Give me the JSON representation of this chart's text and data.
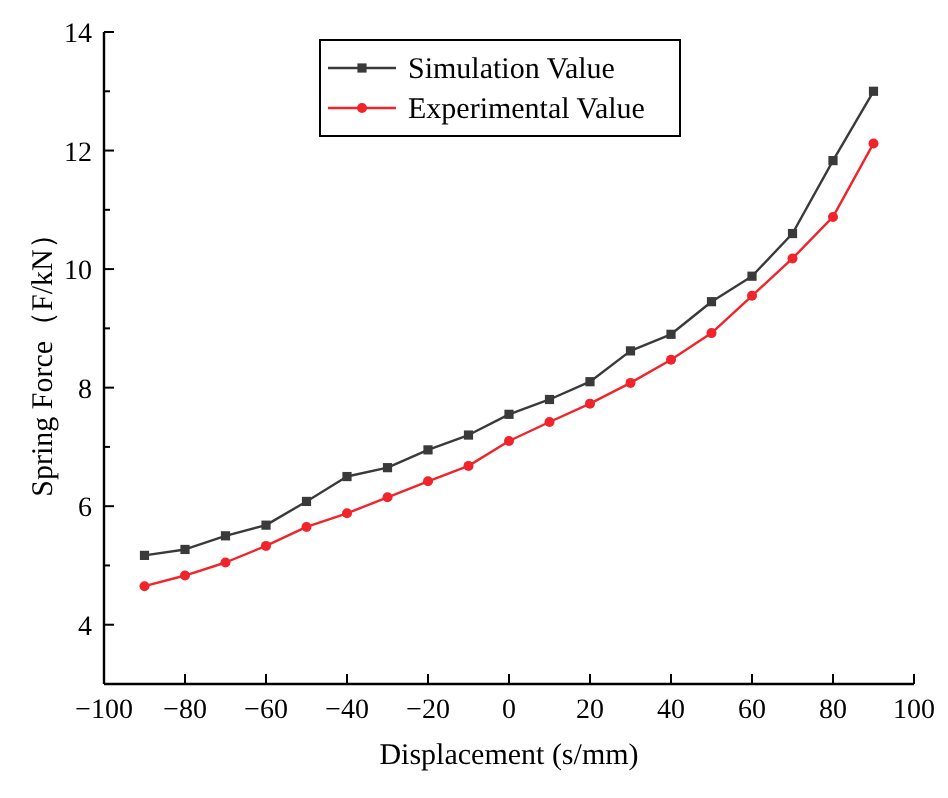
{
  "chart_data": {
    "type": "line",
    "xlabel": "Displacement (s/mm)",
    "ylabel": "Spring Force（F/kN）",
    "x": [
      -90,
      -80,
      -70,
      -60,
      -50,
      -40,
      -30,
      -20,
      -10,
      0,
      10,
      20,
      30,
      40,
      50,
      60,
      70,
      80,
      90
    ],
    "series": [
      {
        "name": "Simulation Value",
        "color": "#3a3a3a",
        "marker": "square",
        "values": [
          5.17,
          5.27,
          5.5,
          5.68,
          6.08,
          6.5,
          6.65,
          6.95,
          7.2,
          7.55,
          7.8,
          8.1,
          8.62,
          8.9,
          9.45,
          9.88,
          10.6,
          11.83,
          13.0
        ]
      },
      {
        "name": "Experimental Value",
        "color": "#f0242b",
        "marker": "circle",
        "values": [
          4.65,
          4.83,
          5.05,
          5.33,
          5.65,
          5.88,
          6.15,
          6.42,
          6.68,
          7.1,
          7.42,
          7.73,
          8.08,
          8.47,
          8.92,
          9.55,
          10.18,
          10.88,
          12.12
        ]
      }
    ],
    "xlim": [
      -100,
      100
    ],
    "xticks": [
      -100,
      -80,
      -60,
      -40,
      -20,
      0,
      20,
      40,
      60,
      80,
      100
    ],
    "ylim": [
      3,
      14
    ],
    "yticks": [
      4,
      6,
      8,
      10,
      12,
      14
    ],
    "grid": false,
    "legend": "top",
    "line_style": "solid"
  }
}
